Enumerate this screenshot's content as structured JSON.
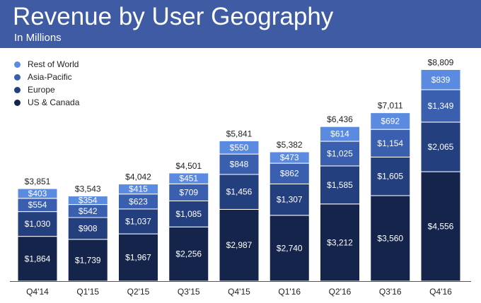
{
  "header": {
    "title": "Revenue by User Geography",
    "subtitle": "In Millions"
  },
  "colors": {
    "header_bg": "#3e5ba3",
    "rest_of_world": "#5b8be0",
    "asia_pacific": "#3a5fae",
    "europe": "#243f7e",
    "us_canada": "#14244a"
  },
  "legend": [
    {
      "label": "Rest of World",
      "color": "#5b8be0"
    },
    {
      "label": "Asia-Pacific",
      "color": "#3a5fae"
    },
    {
      "label": "Europe",
      "color": "#243f7e"
    },
    {
      "label": "US & Canada",
      "color": "#14244a"
    }
  ],
  "chart_data": {
    "type": "bar",
    "stacked": true,
    "title": "Revenue by User Geography",
    "subtitle": "In Millions",
    "categories": [
      "Q4'14",
      "Q1'15",
      "Q2'15",
      "Q3'15",
      "Q4'15",
      "Q1'16",
      "Q2'16",
      "Q3'16",
      "Q4'16"
    ],
    "series": [
      {
        "name": "US & Canada",
        "color": "#14244a",
        "values": [
          1864,
          1739,
          1967,
          2256,
          2987,
          2740,
          3212,
          3560,
          4556
        ],
        "labels": [
          "$1,864",
          "$1,739",
          "$1,967",
          "$2,256",
          "$2,987",
          "$2,740",
          "$3,212",
          "$3,560",
          "$4,556"
        ]
      },
      {
        "name": "Europe",
        "color": "#243f7e",
        "values": [
          1030,
          908,
          1037,
          1085,
          1456,
          1307,
          1585,
          1605,
          2065
        ],
        "labels": [
          "$1,030",
          "$908",
          "$1,037",
          "$1,085",
          "$1,456",
          "$1,307",
          "$1,585",
          "$1,605",
          "$2,065"
        ]
      },
      {
        "name": "Asia-Pacific",
        "color": "#3a5fae",
        "values": [
          554,
          542,
          623,
          709,
          848,
          862,
          1025,
          1154,
          1349
        ],
        "labels": [
          "$554",
          "$542",
          "$623",
          "$709",
          "$848",
          "$862",
          "$1,025",
          "$1,154",
          "$1,349"
        ]
      },
      {
        "name": "Rest of World",
        "color": "#5b8be0",
        "values": [
          403,
          354,
          415,
          451,
          550,
          473,
          614,
          692,
          839
        ],
        "labels": [
          "$403",
          "$354",
          "$415",
          "$451",
          "$550",
          "$473",
          "$614",
          "$692",
          "$839"
        ]
      }
    ],
    "totals": [
      3851,
      3543,
      4042,
      4501,
      5841,
      5382,
      6436,
      7011,
      8809
    ],
    "total_labels": [
      "$3,851",
      "$3,543",
      "$4,042",
      "$4,501",
      "$5,841",
      "$5,382",
      "$6,436",
      "$7,011",
      "$8,809"
    ],
    "ylim": [
      0,
      9000
    ],
    "grid": false,
    "legend_position": "top-left"
  }
}
